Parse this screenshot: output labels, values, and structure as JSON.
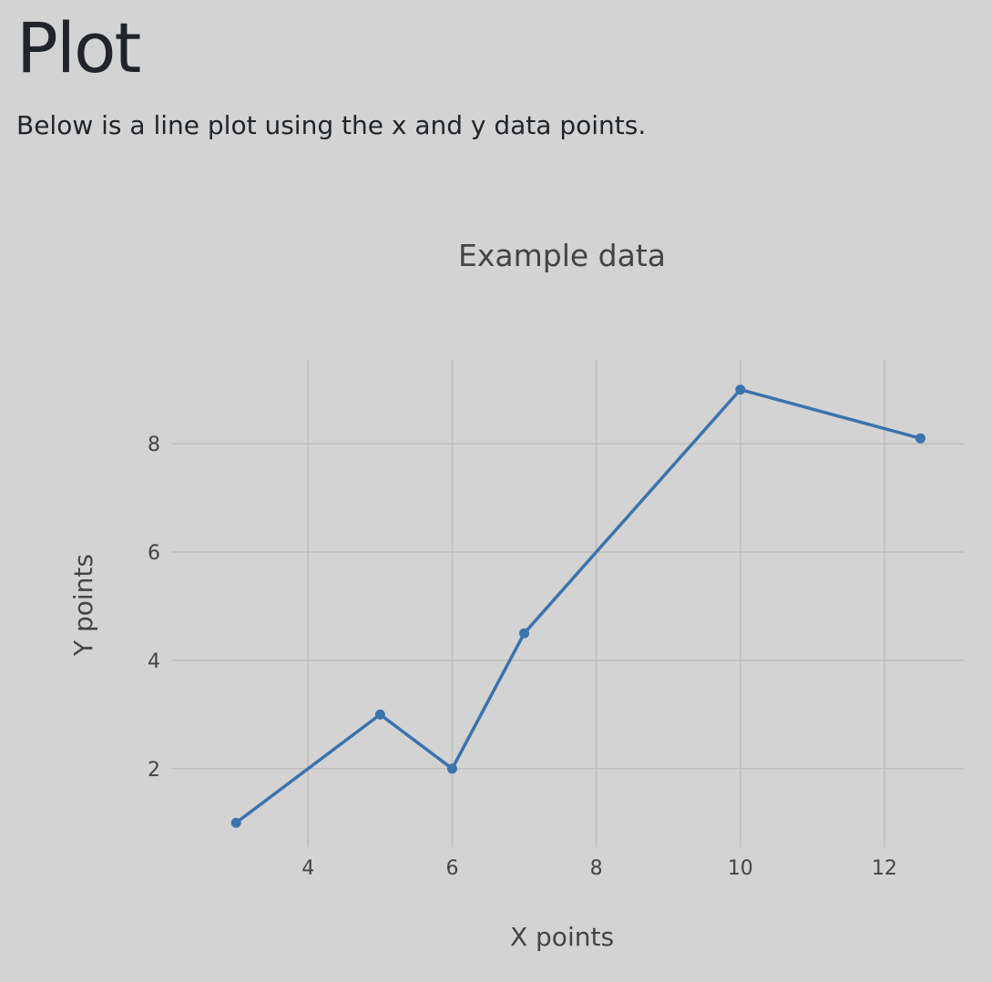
{
  "page": {
    "title": "Plot",
    "intro": "Below is a line plot using the x and y data points."
  },
  "chart_data": {
    "type": "line",
    "title": "Example data",
    "xlabel": "X points",
    "ylabel": "Y points",
    "x": [
      3,
      5,
      6,
      7,
      10,
      12.5
    ],
    "series": [
      {
        "values": [
          1,
          3,
          2,
          4.5,
          9,
          8.1
        ]
      }
    ],
    "xlim": [
      2.1,
      13.1
    ],
    "ylim": [
      0.55,
      9.55
    ],
    "xticks": [
      4,
      6,
      8,
      10,
      12
    ],
    "yticks": [
      2,
      4,
      6,
      8
    ],
    "grid": true,
    "markers": true,
    "line_color": "#3b73ad",
    "background": "#d3d3d3",
    "grid_color": "#bebebe"
  }
}
